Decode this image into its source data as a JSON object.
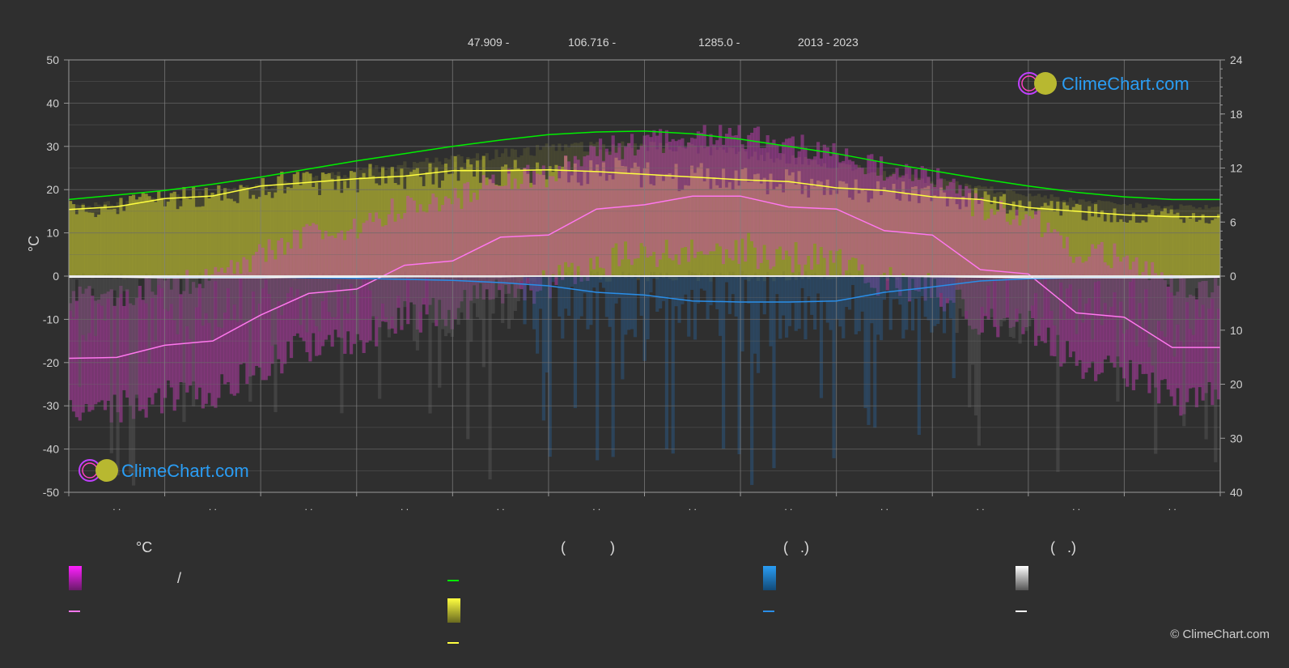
{
  "header": {
    "lat": "47.909 -",
    "lon": "106.716 -",
    "elevation": "1285.0 -",
    "years": "2013 - 2023"
  },
  "watermark": {
    "text": "ClimeChart.com"
  },
  "copyright": "© ClimeChart.com",
  "legend": {
    "col1_title": "°C",
    "col1_slash": "/",
    "col2_title": "(           )",
    "col3_title": "(   .)",
    "col4_title": "(   .)"
  },
  "colors": {
    "background": "#2f2f2f",
    "sunshine_line": "#2ecc2e",
    "sunshine_fill": "#b8b830",
    "daylight_line": "#00ee00",
    "temp_line": "#ff77ee",
    "temp_fill": "#c000c0",
    "rain_line": "#2a8ee8",
    "snow_line": "#ffffff",
    "watermark_text": "#2a9df4"
  },
  "chart_data": {
    "type": "line",
    "y_left": {
      "label": "°C",
      "ticks": [
        "50",
        "40",
        "30",
        "20",
        "10",
        "0",
        "-10",
        "-20",
        "-30",
        "-40",
        "-50"
      ],
      "lim": [
        -50,
        50
      ]
    },
    "y_right_top": {
      "ticks": [
        "24",
        "18",
        "12",
        "6",
        "0"
      ],
      "lim": [
        0,
        24
      ]
    },
    "y_right_bottom": {
      "ticks": [
        "0",
        "10",
        "20",
        "30",
        "40"
      ],
      "lim": [
        0,
        40
      ]
    },
    "x_ticks": [
      ". .",
      ". .",
      ". .",
      ". .",
      ". .",
      ". .",
      ". .",
      ". .",
      ". .",
      ". .",
      ". .",
      ". ."
    ],
    "x": [
      0,
      0.5,
      1,
      1.5,
      2,
      2.5,
      3,
      3.5,
      4,
      4.5,
      5,
      5.5,
      6,
      6.5,
      7,
      7.5,
      8,
      8.5,
      9,
      9.5,
      10,
      10.5,
      11,
      11.5,
      12
    ],
    "series": [
      {
        "values": [
          8.5,
          9.0,
          9.5,
          10.2,
          11.0,
          11.9,
          12.8,
          13.6,
          14.4,
          15.1,
          15.7,
          16.0,
          16.1,
          15.8,
          15.2,
          14.4,
          13.6,
          12.6,
          11.7,
          10.8,
          10.0,
          9.3,
          8.8,
          8.5,
          8.5
        ]
      },
      {
        "values": [
          7.4,
          7.7,
          8.6,
          8.9,
          10.0,
          10.4,
          10.8,
          11.1,
          11.7,
          11.7,
          11.8,
          11.6,
          11.3,
          11.0,
          10.7,
          10.5,
          9.8,
          9.5,
          8.8,
          8.5,
          7.6,
          7.2,
          6.8,
          6.6,
          6.6
        ]
      },
      {
        "values": [
          -19.0,
          -18.8,
          -16.0,
          -15.0,
          -9.0,
          -4.0,
          -3.0,
          2.5,
          3.5,
          9.0,
          9.5,
          15.5,
          16.5,
          18.5,
          18.5,
          16.0,
          15.5,
          10.5,
          9.5,
          1.5,
          0.5,
          -8.5,
          -9.5,
          -16.5,
          -16.5
        ]
      },
      {
        "values": [
          0.0,
          0.0,
          0.1,
          0.1,
          0.2,
          0.3,
          0.4,
          0.6,
          0.8,
          1.2,
          1.8,
          3.0,
          3.5,
          4.6,
          4.8,
          4.8,
          4.6,
          3.0,
          2.0,
          0.9,
          0.5,
          0.3,
          0.2,
          0.1,
          0.0
        ]
      },
      {
        "values": [
          0.2,
          0.2,
          0.3,
          0.3,
          0.3,
          0.2,
          0.2,
          0.1,
          0.1,
          0.1,
          0.0,
          0.0,
          0.0,
          0.0,
          0.0,
          0.0,
          0.0,
          0.0,
          0.1,
          0.2,
          0.3,
          0.3,
          0.3,
          0.3,
          0.2
        ]
      }
    ]
  }
}
